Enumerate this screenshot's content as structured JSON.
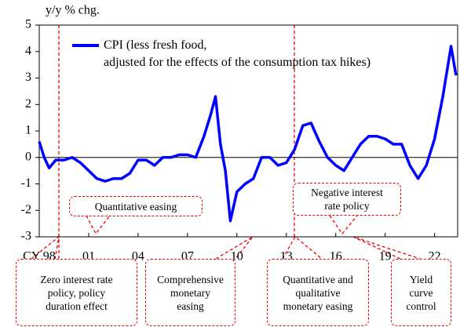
{
  "chart_data": {
    "type": "line",
    "y_label": "y/y % chg.",
    "xlim": [
      1998,
      2023.4
    ],
    "ylim": [
      -3,
      5
    ],
    "xticks": [
      {
        "value": 1998,
        "label": "CY 98"
      },
      {
        "value": 2001,
        "label": "01"
      },
      {
        "value": 2004,
        "label": "04"
      },
      {
        "value": 2007,
        "label": "07"
      },
      {
        "value": 2010,
        "label": "10"
      },
      {
        "value": 2013,
        "label": "13"
      },
      {
        "value": 2016,
        "label": "16"
      },
      {
        "value": 2019,
        "label": "19"
      },
      {
        "value": 2022,
        "label": "22"
      }
    ],
    "yticks": [
      -3,
      -2,
      -1,
      0,
      1,
      2,
      3,
      4,
      5
    ],
    "series": [
      {
        "name": "CPI (less fresh food,\nadjusted for the effects of the consumption tax hikes)",
        "color": "#0000ff",
        "x": [
          1998.0,
          1998.3,
          1998.6,
          1999.0,
          1999.5,
          2000.0,
          2000.5,
          2001.0,
          2001.5,
          2002.0,
          2002.5,
          2003.0,
          2003.5,
          2004.0,
          2004.5,
          2005.0,
          2005.5,
          2006.0,
          2006.5,
          2007.0,
          2007.5,
          2008.0,
          2008.4,
          2008.7,
          2009.0,
          2009.3,
          2009.6,
          2010.0,
          2010.5,
          2011.0,
          2011.5,
          2012.0,
          2012.5,
          2013.0,
          2013.5,
          2014.0,
          2014.5,
          2015.0,
          2015.5,
          2016.0,
          2016.5,
          2017.0,
          2017.5,
          2018.0,
          2018.5,
          2019.0,
          2019.5,
          2020.0,
          2020.5,
          2021.0,
          2021.5,
          2022.0,
          2022.5,
          2023.0,
          2023.3
        ],
        "values": [
          0.6,
          0.0,
          -0.4,
          -0.1,
          -0.1,
          0.0,
          -0.2,
          -0.5,
          -0.8,
          -0.9,
          -0.8,
          -0.8,
          -0.6,
          -0.1,
          -0.1,
          -0.3,
          0.0,
          0.0,
          0.1,
          0.1,
          0.0,
          0.8,
          1.6,
          2.3,
          0.5,
          -0.5,
          -2.4,
          -1.3,
          -1.0,
          -0.8,
          0.0,
          0.0,
          -0.3,
          -0.2,
          0.3,
          1.2,
          1.3,
          0.6,
          0.0,
          -0.3,
          -0.5,
          0.0,
          0.5,
          0.8,
          0.8,
          0.7,
          0.5,
          0.5,
          -0.3,
          -0.8,
          -0.3,
          0.7,
          2.3,
          4.2,
          3.1
        ]
      }
    ],
    "annotations": [
      "Quantitative easing",
      "Negative interest\nrate policy",
      "Zero interest rate\npolicy, policy\nduration effect",
      "Comprehensive\nmonetary\neasing",
      "Quantitative and\nqualitative\nmonetary easing",
      "Yield\ncurve\ncontrol"
    ]
  }
}
